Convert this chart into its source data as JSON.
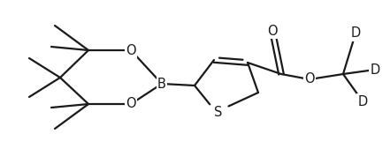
{
  "bg_color": "#ffffff",
  "line_color": "#1a1a1a",
  "line_width": 1.6,
  "font_size": 10.5,
  "figsize": [
    4.41,
    1.69
  ],
  "dpi": 100,
  "xlim": [
    0,
    441
  ],
  "ylim": [
    0,
    169
  ]
}
